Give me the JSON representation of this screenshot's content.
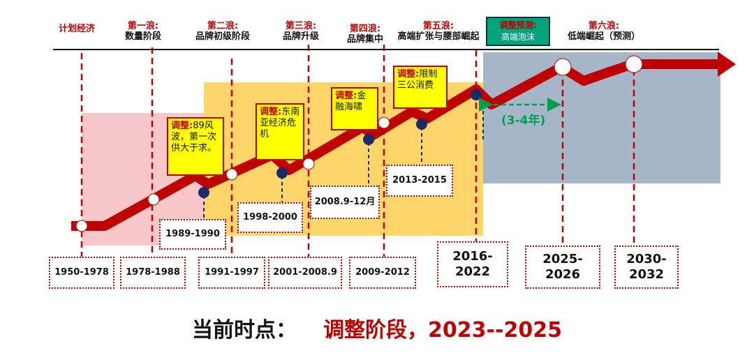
{
  "top_labels": {
    "plan": "计划经济",
    "waves": [
      {
        "name": "第一浪:",
        "desc": "数量阶段"
      },
      {
        "name": "第二浪:",
        "desc": "品牌初级阶段"
      },
      {
        "name": "第三浪:",
        "desc": "品牌升级"
      },
      {
        "name": "第四浪:",
        "desc": "品牌集中"
      },
      {
        "name": "第五浪:",
        "desc": "高端扩张与腰部崛起"
      },
      {
        "name": "第六浪:",
        "desc": "低端崛起（预测）"
      }
    ],
    "forecast": {
      "title": "调整预测:",
      "desc": "高端泡沫"
    }
  },
  "adjustments": [
    {
      "label": "调整:",
      "text": "89风波，第一次供大于求。"
    },
    {
      "label": "调整:",
      "text": "东南亚经济危机"
    },
    {
      "label": "调整:",
      "text": "金融海啸"
    },
    {
      "label": "调整:",
      "text": "限制三公消费"
    }
  ],
  "adjustment_periods": [
    "1989-1990",
    "1998-2000",
    "2008.9-12月",
    "2013-2015"
  ],
  "periods": [
    "1950-1978",
    "1978-1988",
    "1991-1997",
    "2001-2008.9",
    "2009-2012",
    "2016-2022",
    "2025-2026",
    "2030-2032"
  ],
  "duration_label": "(3-4年)",
  "footer": {
    "label": "当前时点：",
    "value": "调整阶段，2023--2025"
  },
  "colors": {
    "arrow": "#c00000",
    "zone_pink": "#f8c7c9",
    "zone_yellow": "#fdd568",
    "zone_gray": "#a6b6c9",
    "node_blue": "#1a2b6d",
    "forecast_bg": "#00a37a",
    "duration_green": "#00a050"
  }
}
